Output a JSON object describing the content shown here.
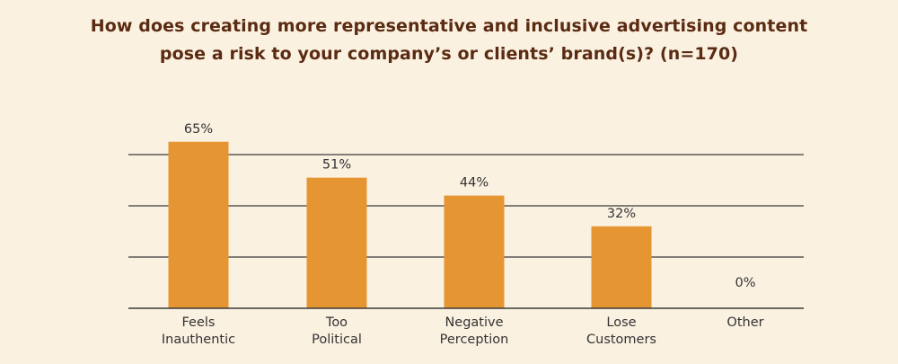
{
  "chart_data": {
    "type": "bar",
    "title": [
      "How does creating more representative and inclusive advertising content",
      "pose a risk to your company’s or clients’ brand(s)? (n=170)"
    ],
    "categories": [
      [
        "Feels",
        "Inauthentic"
      ],
      [
        "Too",
        "Political"
      ],
      [
        "Negative",
        "Perception"
      ],
      [
        "Lose",
        "Customers"
      ],
      [
        "Other"
      ]
    ],
    "values": [
      65,
      51,
      44,
      32,
      0
    ],
    "data_labels": [
      "65%",
      "51%",
      "44%",
      "32%",
      "0%"
    ],
    "ylim": [
      0,
      72
    ],
    "gridlines": [
      20,
      40,
      60
    ],
    "colors": {
      "bar": "#e69533",
      "title": "#5a2b12",
      "background": "#fbf1e1"
    }
  }
}
